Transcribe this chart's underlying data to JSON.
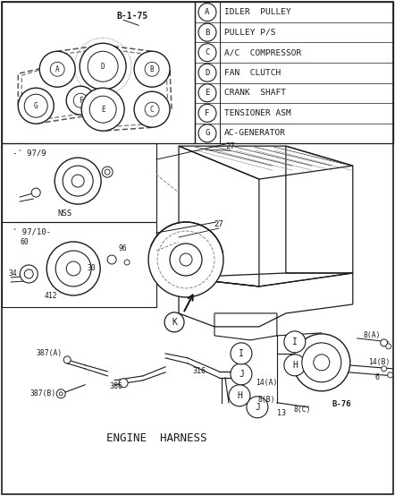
{
  "bg_color": "#ffffff",
  "lc": "#1a1a1a",
  "legend_items": [
    [
      "A",
      "IDLER  PULLEY"
    ],
    [
      "B",
      "PULLEY P/S"
    ],
    [
      "C",
      "A/C  COMPRESSOR"
    ],
    [
      "D",
      "FAN  CLUTCH"
    ],
    [
      "E",
      "CRANK  SHAFT"
    ],
    [
      "F",
      "TENSIONER ASM"
    ],
    [
      "G",
      "AC-GENERATOR"
    ]
  ],
  "belt_label": "B-1-75",
  "bottom_text": "ENGINE  HARNESS",
  "b76": "B-76"
}
